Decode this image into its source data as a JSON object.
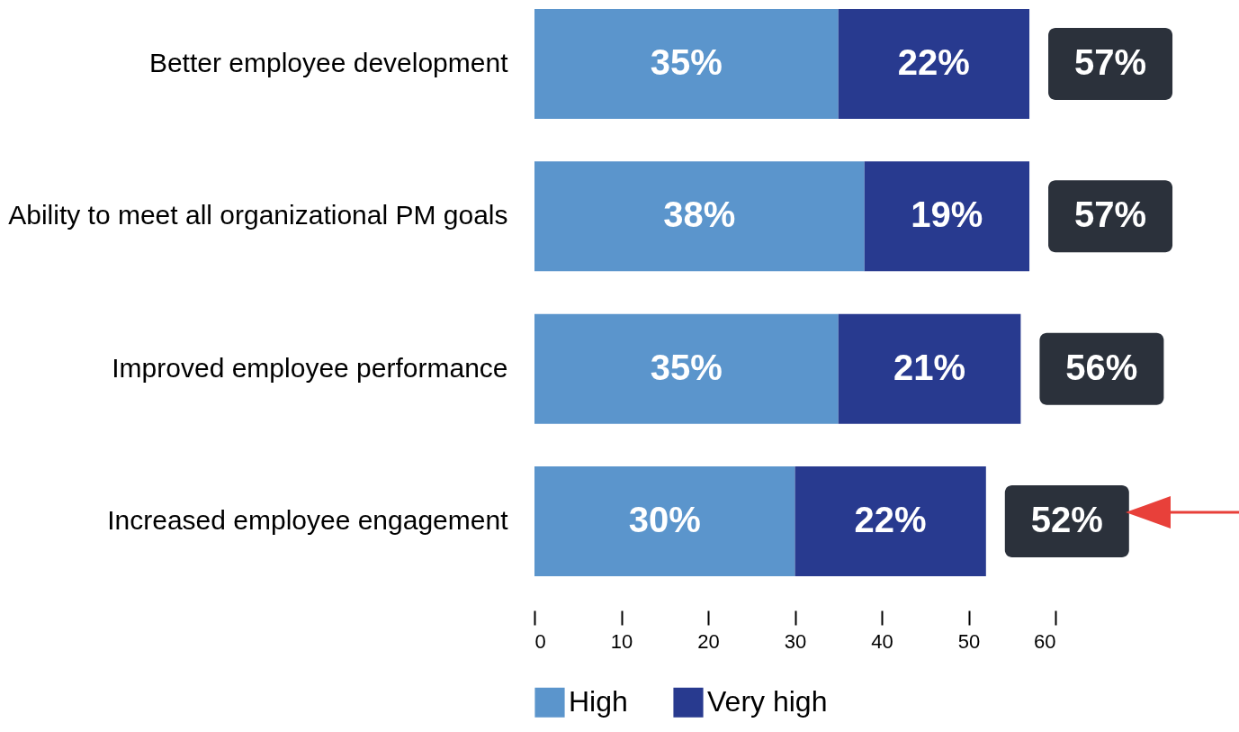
{
  "chart_data": {
    "type": "bar",
    "orientation": "horizontal",
    "stacked": true,
    "categories": [
      "Better employee development",
      "Ability to meet all organizational PM goals",
      "Improved employee performance",
      "Increased employee engagement"
    ],
    "series": [
      {
        "name": "High",
        "color": "#5b95cc",
        "values": [
          35,
          38,
          35,
          30
        ],
        "value_labels": [
          "35%",
          "38%",
          "35%",
          "30%"
        ]
      },
      {
        "name": "Very high",
        "color": "#283a8f",
        "values": [
          22,
          19,
          21,
          22
        ],
        "value_labels": [
          "22%",
          "19%",
          "21%",
          "22%"
        ]
      }
    ],
    "totals": [
      "57%",
      "57%",
      "56%",
      "52%"
    ],
    "xlim": [
      0,
      60
    ],
    "xticks": [
      0,
      10,
      20,
      30,
      40,
      50,
      60
    ],
    "grid": false,
    "legend": "bottom"
  }
}
